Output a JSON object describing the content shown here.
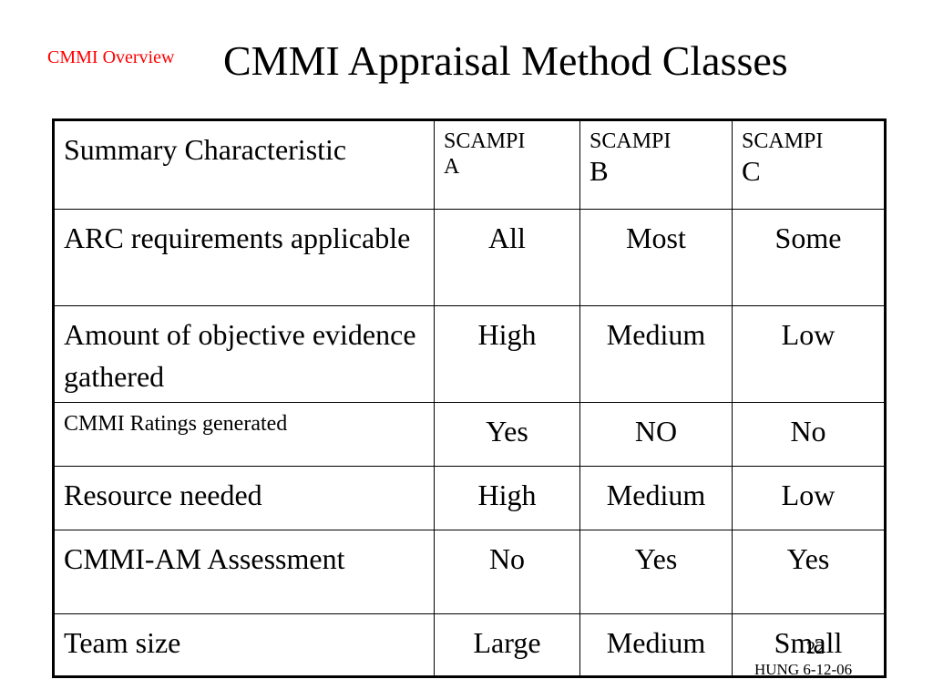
{
  "header": {
    "section_label": "CMMI Overview",
    "title": "CMMI Appraisal Method Classes"
  },
  "table": {
    "header": {
      "characteristic": "Summary Characteristic",
      "columns": [
        {
          "top": "SCAMPI",
          "letter": "A",
          "letter_size": "small"
        },
        {
          "top": "SCAMPI",
          "letter": "B",
          "letter_size": "large"
        },
        {
          "top": "SCAMPI",
          "letter": "C",
          "letter_size": "large"
        }
      ]
    },
    "rows": [
      {
        "label": "ARC requirements applicable",
        "values": [
          "All",
          "Most",
          "Some"
        ]
      },
      {
        "label": "Amount of objective evidence gathered",
        "values": [
          "High",
          "Medium",
          "Low"
        ]
      },
      {
        "label": "CMMI Ratings generated",
        "values": [
          "Yes",
          "NO",
          "No"
        ]
      },
      {
        "label": "Resource needed",
        "values": [
          "High",
          "Medium",
          "Low"
        ]
      },
      {
        "label": "CMMI-AM Assessment",
        "values": [
          "No",
          "Yes",
          "Yes"
        ]
      },
      {
        "label": "Team size",
        "values": [
          "Large",
          "Medium",
          "Small"
        ]
      }
    ]
  },
  "footer": {
    "slide_number": "22",
    "author_date": "HUNG    6-12-06"
  },
  "colors": {
    "section_label": "#ff0000",
    "text": "#000000",
    "background": "#ffffff"
  }
}
